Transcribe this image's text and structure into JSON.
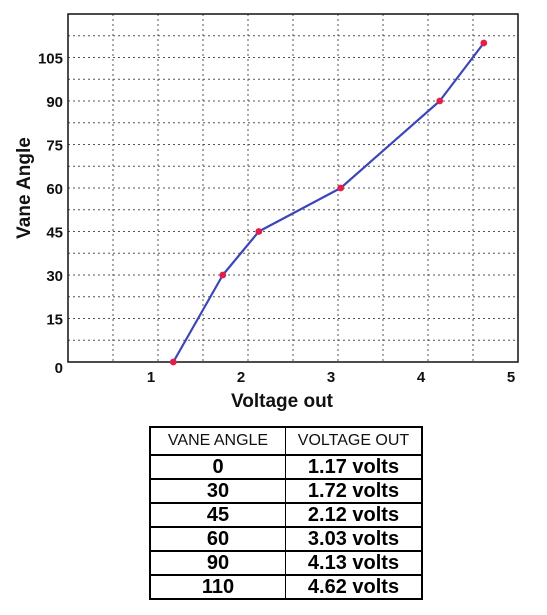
{
  "chart_data": {
    "type": "line",
    "title": "",
    "xlabel": "Voltage out",
    "ylabel": "Vane Angle",
    "xlim": [
      0,
      5
    ],
    "ylim": [
      0,
      120
    ],
    "x_ticks": [
      0,
      1,
      2,
      3,
      4,
      5
    ],
    "x_tick_labels": [
      "",
      "1",
      "2",
      "3",
      "4",
      "5"
    ],
    "y_ticks": [
      0,
      15,
      30,
      45,
      60,
      75,
      90,
      105
    ],
    "y_tick_labels": [
      "0",
      "15",
      "30",
      "45",
      "60",
      "75",
      "90",
      "105"
    ],
    "grid": "dashed, every 0.5 V and 7.5 degrees",
    "line_color": "#3b46b8",
    "marker_color": "#e0204a",
    "points": [
      {
        "x": 1.17,
        "y": 0
      },
      {
        "x": 1.72,
        "y": 30
      },
      {
        "x": 2.12,
        "y": 45
      },
      {
        "x": 3.03,
        "y": 60
      },
      {
        "x": 4.13,
        "y": 90
      },
      {
        "x": 4.62,
        "y": 110
      }
    ]
  },
  "table": {
    "headers": [
      "VANE ANGLE",
      "VOLTAGE OUT"
    ],
    "rows": [
      [
        "0",
        "1.17 volts"
      ],
      [
        "30",
        "1.72 volts"
      ],
      [
        "45",
        "2.12 volts"
      ],
      [
        "60",
        "3.03 volts"
      ],
      [
        "90",
        "4.13 volts"
      ],
      [
        "110",
        "4.62 volts"
      ]
    ]
  }
}
